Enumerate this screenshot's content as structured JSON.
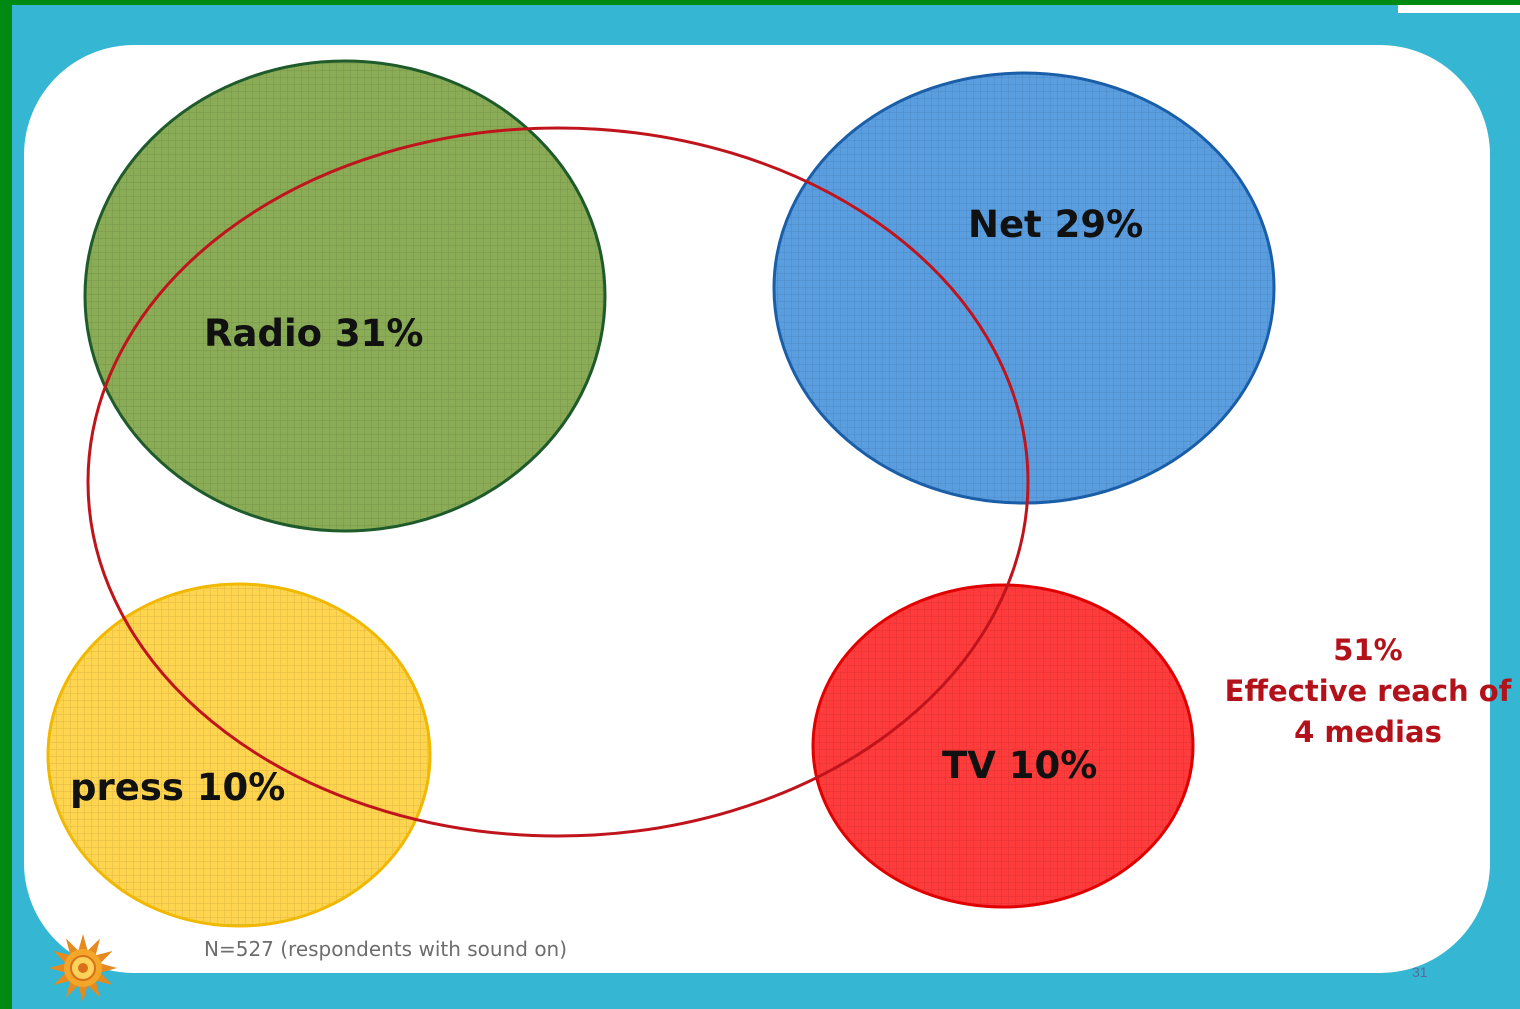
{
  "diagram": {
    "circles": [
      {
        "id": "radio",
        "label": "Radio 31%",
        "fill": "#8aac56",
        "stroke": "#1e5a2a"
      },
      {
        "id": "net",
        "label": "Net 29%",
        "fill": "#5a9ee0",
        "stroke": "#1a5ea8"
      },
      {
        "id": "press",
        "label": "press 10%",
        "fill": "#ffd54f",
        "stroke": "#f0b800"
      },
      {
        "id": "tv",
        "label": "TV 10%",
        "fill": "#ff3b3b",
        "stroke": "#e00000"
      }
    ],
    "reach_ellipse_color": "#c0141c",
    "reach": {
      "percent": "51%",
      "line1": "Effective reach of",
      "line2": "4 medias"
    },
    "footnote": "N=527 (respondents with sound on)",
    "page_number": "31"
  },
  "colors": {
    "frame": "#008a12",
    "background": "#35b6d2",
    "card": "#ffffff"
  },
  "icons": {
    "logo": "sun-ornament-logo"
  }
}
